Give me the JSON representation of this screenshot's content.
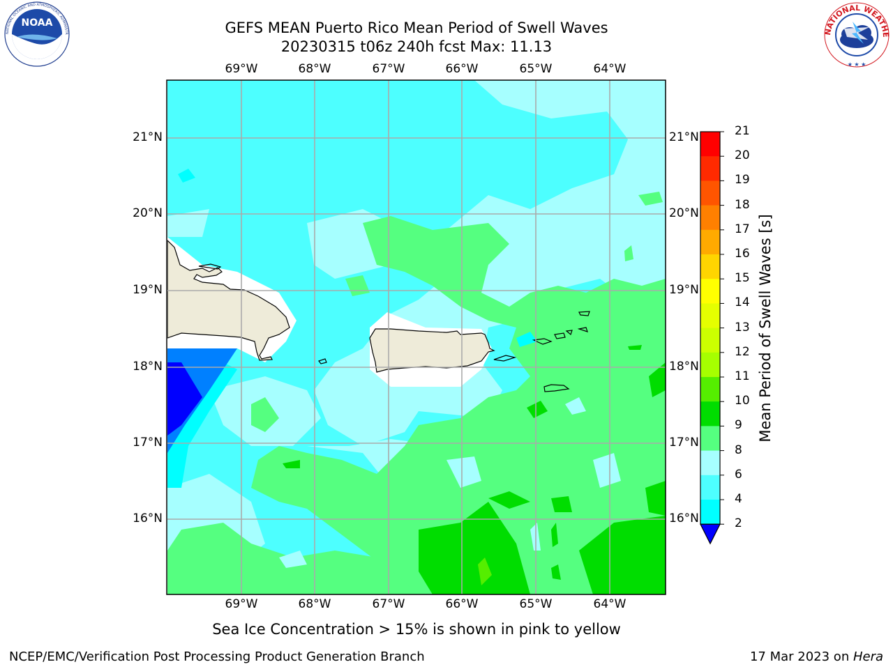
{
  "header": {
    "title_line1": "GEFS MEAN Puerto Rico Mean Period of Swell Waves",
    "title_line2": "20230315 t06z 240h fcst   Max: 11.13"
  },
  "logos": {
    "left": {
      "name": "NOAA",
      "ring_text": "NATIONAL OCEANIC AND ATMOSPHERIC ADMINISTRATION · U.S. DEPARTMENT OF COMMERCE"
    },
    "right": {
      "name": "NATIONAL WEATHER SERVICE"
    }
  },
  "map": {
    "longitude_labels": [
      "69°W",
      "68°W",
      "67°W",
      "66°W",
      "65°W",
      "64°W"
    ],
    "latitude_labels": [
      "21°N",
      "20°N",
      "19°N",
      "18°N",
      "17°N",
      "16°N"
    ],
    "extent": {
      "lon_min": -70.0,
      "lon_max": -63.25,
      "lat_min": 15.0,
      "lat_max": 21.75
    },
    "gridlines": true,
    "land_color": "#eeebd9",
    "coast_color": "#000000"
  },
  "colorbar": {
    "title": "Mean Period of Swell Waves [s]",
    "labels": [
      "21",
      "20",
      "19",
      "18",
      "17",
      "16",
      "15",
      "14",
      "13",
      "12",
      "11",
      "10",
      "9",
      "8",
      "6",
      "4",
      "2"
    ],
    "colors": [
      "#ff0000",
      "#ff2a00",
      "#ff5500",
      "#ff8000",
      "#ffaa00",
      "#ffd500",
      "#ffff00",
      "#e5ff00",
      "#ccff00",
      "#a6ff00",
      "#55ee00",
      "#00dd00",
      "#55ff80",
      "#a6ffff",
      "#4dffff",
      "#00ffff",
      "#0080ff"
    ],
    "extend_color": "#0000ff"
  },
  "legend_note": "Sea Ice Concentration > 15% is shown in pink to yellow",
  "footer": {
    "left": "NCEP/EMC/Verification Post Processing Product Generation Branch",
    "right_date": "17 Mar 2023 on ",
    "right_host": "Hera"
  }
}
